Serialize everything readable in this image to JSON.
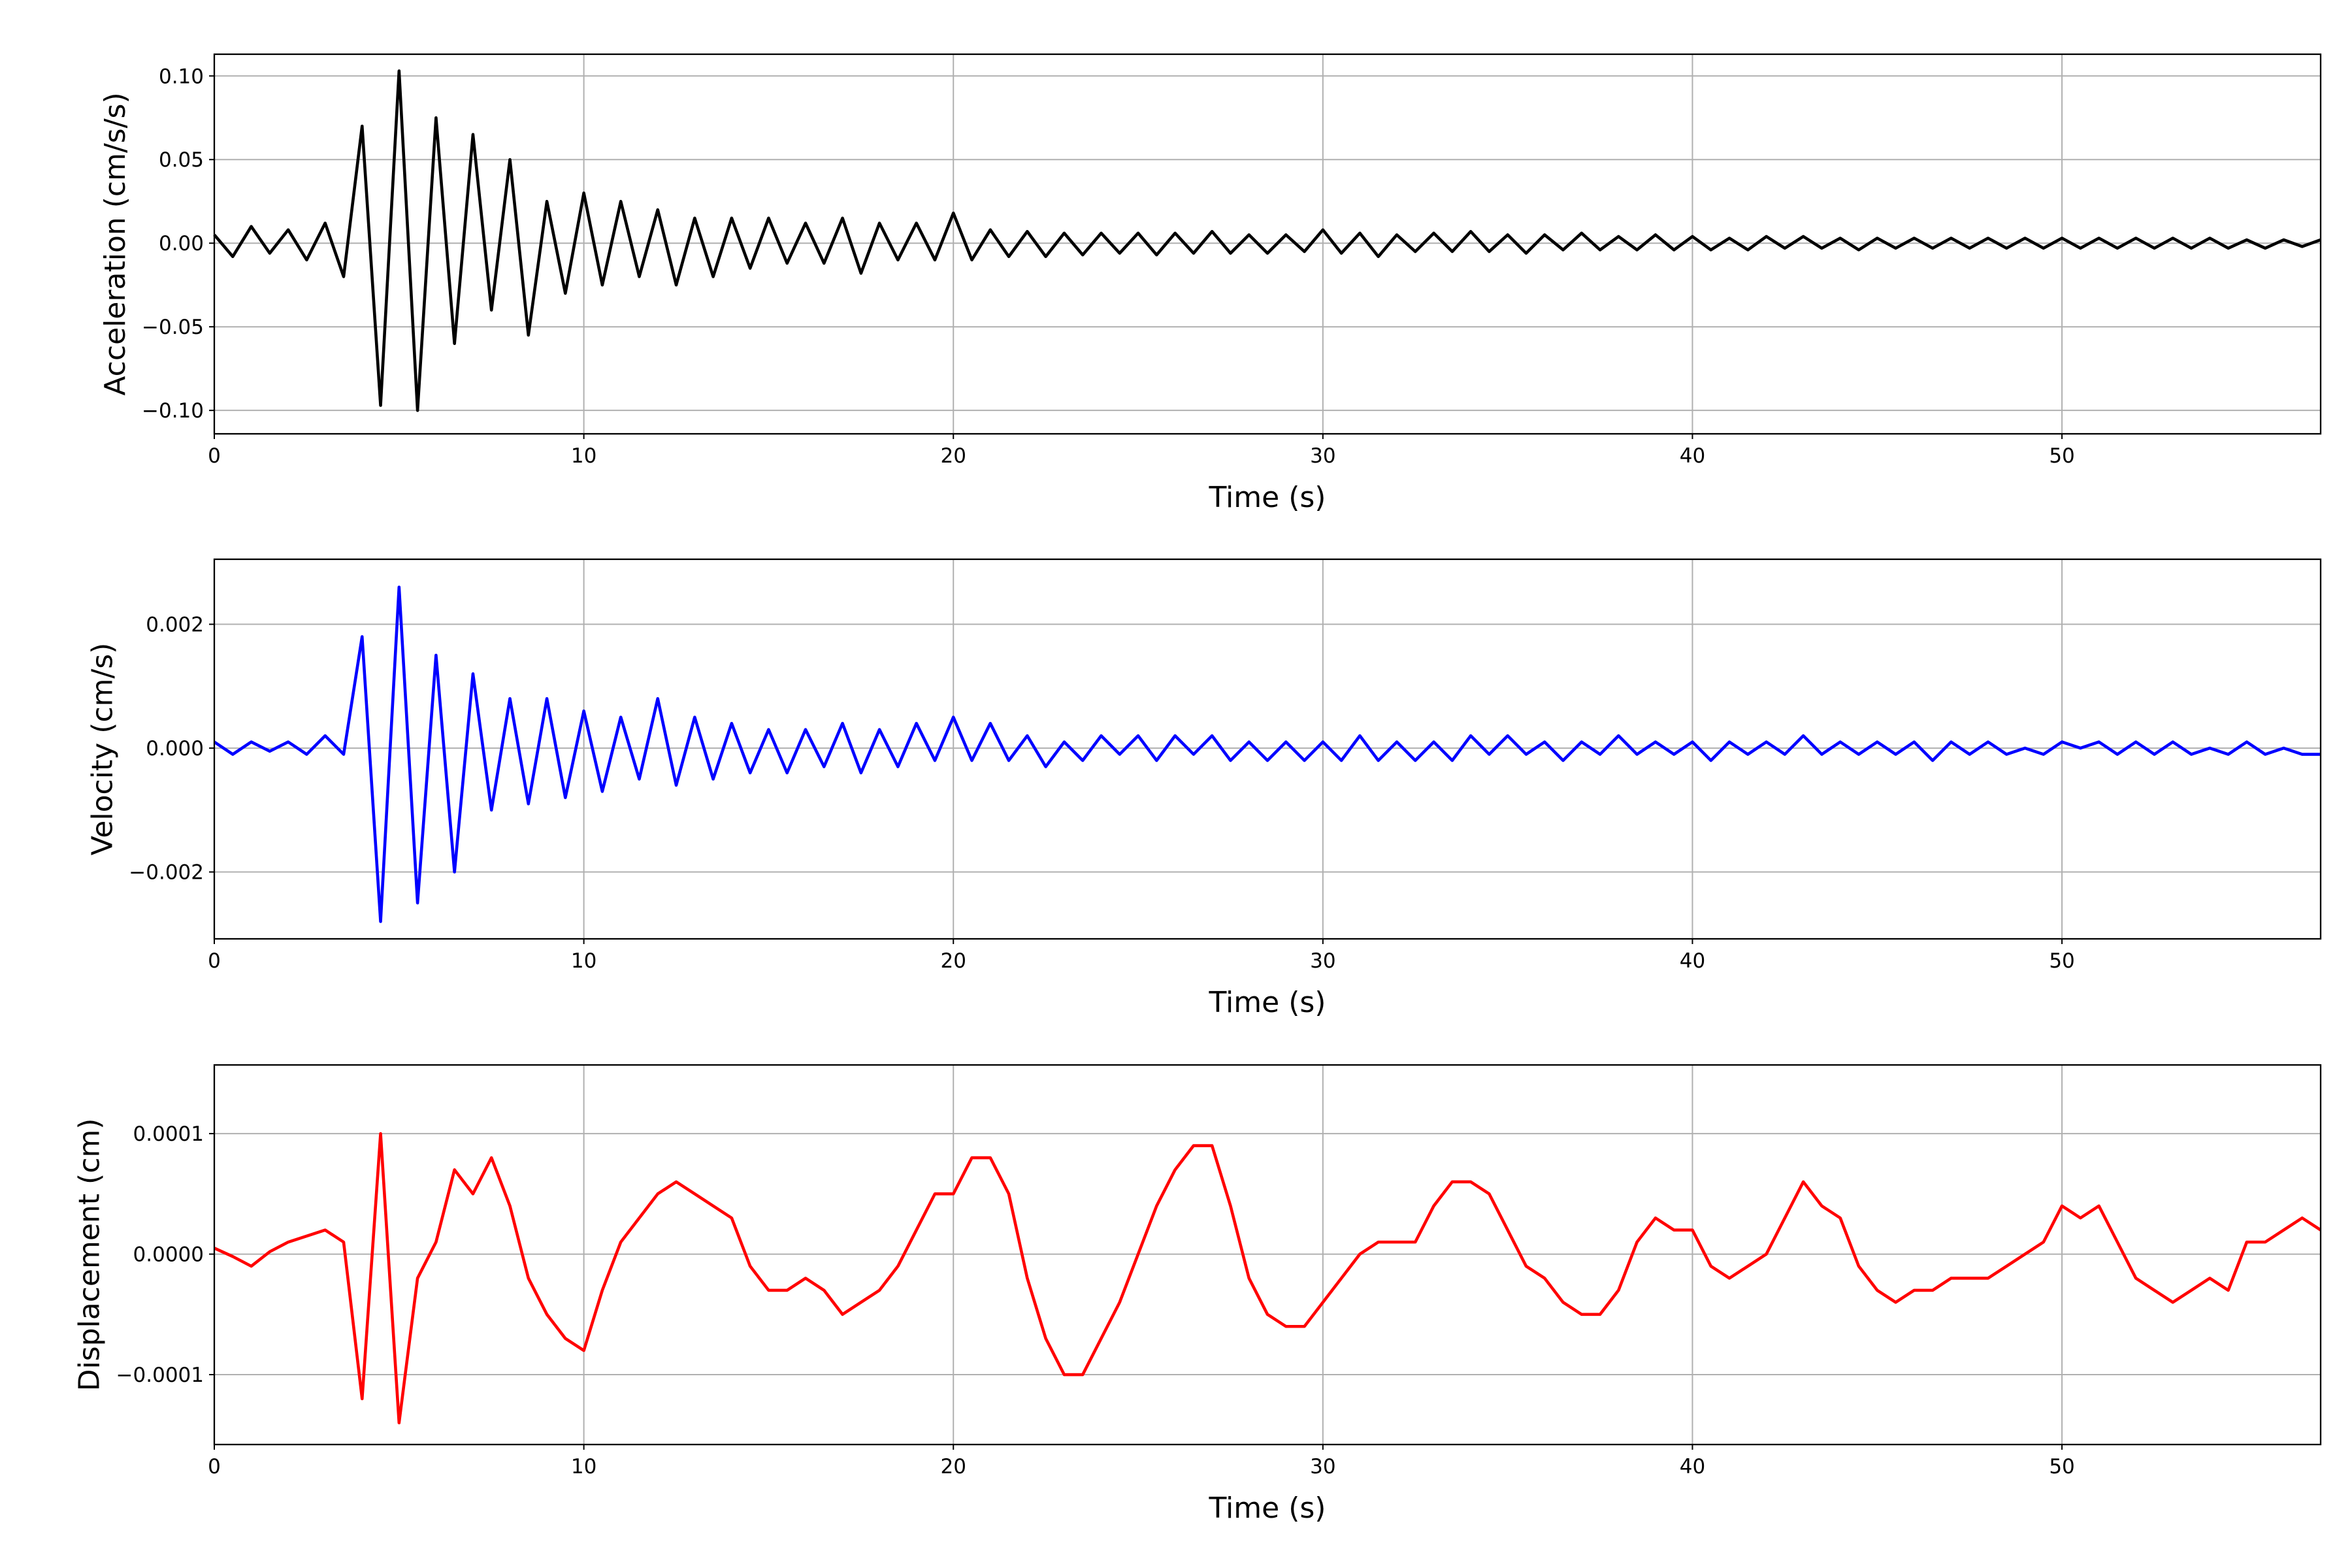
{
  "chart_data": [
    {
      "type": "line",
      "x_label": "Time (s)",
      "y_label": "Acceleration (cm/s/s)",
      "color": "#000000",
      "grid": true,
      "xlim": [
        0,
        57
      ],
      "xticks": [
        0,
        10,
        20,
        30,
        40,
        50
      ],
      "ylim": [
        -0.114,
        0.113
      ],
      "yticks": [
        {
          "value": -0.1,
          "label": "−0.10"
        },
        {
          "value": -0.05,
          "label": "−0.05"
        },
        {
          "value": 0,
          "label": "0.00"
        },
        {
          "value": 0.05,
          "label": "0.05"
        },
        {
          "value": 0.1,
          "label": "0.10"
        }
      ],
      "x": [
        0,
        0.5,
        1,
        1.5,
        2,
        2.5,
        3,
        3.5,
        4,
        4.5,
        5,
        5.5,
        6,
        6.5,
        7,
        7.5,
        8,
        8.5,
        9,
        9.5,
        10,
        10.5,
        11,
        11.5,
        12,
        12.5,
        13,
        13.5,
        14,
        14.5,
        15,
        15.5,
        16,
        16.5,
        17,
        17.5,
        18,
        18.5,
        19,
        19.5,
        20,
        20.5,
        21,
        21.5,
        22,
        22.5,
        23,
        23.5,
        24,
        24.5,
        25,
        25.5,
        26,
        26.5,
        27,
        27.5,
        28,
        28.5,
        29,
        29.5,
        30,
        30.5,
        31,
        31.5,
        32,
        32.5,
        33,
        33.5,
        34,
        34.5,
        35,
        35.5,
        36,
        36.5,
        37,
        37.5,
        38,
        38.5,
        39,
        39.5,
        40,
        40.5,
        41,
        41.5,
        42,
        42.5,
        43,
        43.5,
        44,
        44.5,
        45,
        45.5,
        46,
        46.5,
        47,
        47.5,
        48,
        48.5,
        49,
        49.5,
        50,
        50.5,
        51,
        51.5,
        52,
        52.5,
        53,
        53.5,
        54,
        54.5,
        55,
        55.5,
        56,
        56.5,
        57
      ],
      "values": [
        0.005,
        -0.008,
        0.01,
        -0.006,
        0.008,
        -0.01,
        0.012,
        -0.02,
        0.07,
        -0.097,
        0.103,
        -0.1,
        0.075,
        -0.06,
        0.065,
        -0.04,
        0.05,
        -0.055,
        0.025,
        -0.03,
        0.03,
        -0.025,
        0.025,
        -0.02,
        0.02,
        -0.025,
        0.015,
        -0.02,
        0.015,
        -0.015,
        0.015,
        -0.012,
        0.012,
        -0.012,
        0.015,
        -0.018,
        0.012,
        -0.01,
        0.012,
        -0.01,
        0.018,
        -0.01,
        0.008,
        -0.008,
        0.007,
        -0.008,
        0.006,
        -0.007,
        0.006,
        -0.006,
        0.006,
        -0.007,
        0.006,
        -0.006,
        0.007,
        -0.006,
        0.005,
        -0.006,
        0.005,
        -0.005,
        0.008,
        -0.006,
        0.006,
        -0.008,
        0.005,
        -0.005,
        0.006,
        -0.005,
        0.007,
        -0.005,
        0.005,
        -0.006,
        0.005,
        -0.004,
        0.006,
        -0.004,
        0.004,
        -0.004,
        0.005,
        -0.004,
        0.004,
        -0.004,
        0.003,
        -0.004,
        0.004,
        -0.003,
        0.004,
        -0.003,
        0.003,
        -0.004,
        0.003,
        -0.003,
        0.003,
        -0.003,
        0.003,
        -0.003,
        0.003,
        -0.003,
        0.003,
        -0.003,
        0.003,
        -0.003,
        0.003,
        -0.003,
        0.003,
        -0.003,
        0.003,
        -0.003,
        0.003,
        -0.003,
        0.002,
        -0.003,
        0.002,
        -0.002,
        0.002
      ]
    },
    {
      "type": "line",
      "x_label": "Time (s)",
      "y_label": "Velocity (cm/s)",
      "color": "#0000ff",
      "grid": true,
      "xlim": [
        0,
        57
      ],
      "xticks": [
        0,
        10,
        20,
        30,
        40,
        50
      ],
      "ylim": [
        -0.00308,
        0.00305
      ],
      "yticks": [
        {
          "value": -0.002,
          "label": "−0.002"
        },
        {
          "value": 0,
          "label": "0.000"
        },
        0.002
      ],
      "x": [
        0,
        0.5,
        1,
        1.5,
        2,
        2.5,
        3,
        3.5,
        4,
        4.5,
        5,
        5.5,
        6,
        6.5,
        7,
        7.5,
        8,
        8.5,
        9,
        9.5,
        10,
        10.5,
        11,
        11.5,
        12,
        12.5,
        13,
        13.5,
        14,
        14.5,
        15,
        15.5,
        16,
        16.5,
        17,
        17.5,
        18,
        18.5,
        19,
        19.5,
        20,
        20.5,
        21,
        21.5,
        22,
        22.5,
        23,
        23.5,
        24,
        24.5,
        25,
        25.5,
        26,
        26.5,
        27,
        27.5,
        28,
        28.5,
        29,
        29.5,
        30,
        30.5,
        31,
        31.5,
        32,
        32.5,
        33,
        33.5,
        34,
        34.5,
        35,
        35.5,
        36,
        36.5,
        37,
        37.5,
        38,
        38.5,
        39,
        39.5,
        40,
        40.5,
        41,
        41.5,
        42,
        42.5,
        43,
        43.5,
        44,
        44.5,
        45,
        45.5,
        46,
        46.5,
        47,
        47.5,
        48,
        48.5,
        49,
        49.5,
        50,
        50.5,
        51,
        51.5,
        52,
        52.5,
        53,
        53.5,
        54,
        54.5,
        55,
        55.5,
        56,
        56.5,
        57
      ],
      "values": [
        0.0001,
        -0.0001,
        0.0001,
        -5e-05,
        0.0001,
        -0.0001,
        0.0002,
        -0.0001,
        0.0018,
        -0.0028,
        0.0026,
        -0.0025,
        0.0015,
        -0.002,
        0.0012,
        -0.001,
        0.0008,
        -0.0009,
        0.0008,
        -0.0008,
        0.0006,
        -0.0007,
        0.0005,
        -0.0005,
        0.0008,
        -0.0006,
        0.0005,
        -0.0005,
        0.0004,
        -0.0004,
        0.0003,
        -0.0004,
        0.0003,
        -0.0003,
        0.0004,
        -0.0004,
        0.0003,
        -0.0003,
        0.0004,
        -0.0002,
        0.0005,
        -0.0002,
        0.0004,
        -0.0002,
        0.0002,
        -0.0003,
        0.0001,
        -0.0002,
        0.0002,
        -0.0001,
        0.0002,
        -0.0002,
        0.0002,
        -0.0001,
        0.0002,
        -0.0002,
        0.0001,
        -0.0002,
        0.0001,
        -0.0002,
        0.0001,
        -0.0002,
        0.0002,
        -0.0002,
        0.0001,
        -0.0002,
        0.0001,
        -0.0002,
        0.0002,
        -0.0001,
        0.0002,
        -0.0001,
        0.0001,
        -0.0002,
        0.0001,
        -0.0001,
        0.0002,
        -0.0001,
        0.0001,
        -0.0001,
        0.0001,
        -0.0002,
        0.0001,
        -0.0001,
        0.0001,
        -0.0001,
        0.0002,
        -0.0001,
        0.0001,
        -0.0001,
        0.0001,
        -0.0001,
        0.0001,
        -0.0002,
        0.0001,
        -0.0001,
        0.0001,
        -0.0001,
        0,
        -0.0001,
        0.0001,
        0,
        0.0001,
        -0.0001,
        0.0001,
        -0.0001,
        0.0001,
        -0.0001,
        0,
        -0.0001,
        0.0001,
        -0.0001,
        0,
        -0.0001,
        -0.0001
      ]
    },
    {
      "type": "line",
      "x_label": "Time (s)",
      "y_label": "Displacement (cm)",
      "color": "#ff0000",
      "grid": true,
      "xlim": [
        0,
        57
      ],
      "xticks": [
        0,
        10,
        20,
        30,
        40,
        50
      ],
      "ylim": [
        -0.000158,
        0.000157
      ],
      "yticks": [
        {
          "value": -0.0001,
          "label": "−0.0001"
        },
        {
          "value": 0,
          "label": "0.0000"
        },
        0.0001
      ],
      "x": [
        0,
        0.5,
        1,
        1.5,
        2,
        2.5,
        3,
        3.5,
        4,
        4.5,
        5,
        5.5,
        6,
        6.5,
        7,
        7.5,
        8,
        8.5,
        9,
        9.5,
        10,
        10.5,
        11,
        11.5,
        12,
        12.5,
        13,
        13.5,
        14,
        14.5,
        15,
        15.5,
        16,
        16.5,
        17,
        17.5,
        18,
        18.5,
        19,
        19.5,
        20,
        20.5,
        21,
        21.5,
        22,
        22.5,
        23,
        23.5,
        24,
        24.5,
        25,
        25.5,
        26,
        26.5,
        27,
        27.5,
        28,
        28.5,
        29,
        29.5,
        30,
        30.5,
        31,
        31.5,
        32,
        32.5,
        33,
        33.5,
        34,
        34.5,
        35,
        35.5,
        36,
        36.5,
        37,
        37.5,
        38,
        38.5,
        39,
        39.5,
        40,
        40.5,
        41,
        41.5,
        42,
        42.5,
        43,
        43.5,
        44,
        44.5,
        45,
        45.5,
        46,
        46.5,
        47,
        47.5,
        48,
        48.5,
        49,
        49.5,
        50,
        50.5,
        51,
        51.5,
        52,
        52.5,
        53,
        53.5,
        54,
        54.5,
        55,
        55.5,
        56,
        56.5,
        57
      ],
      "values": [
        5e-06,
        -2e-06,
        -1e-05,
        2e-06,
        1e-05,
        1.5e-05,
        2e-05,
        1e-05,
        -0.00012,
        0.0001,
        -0.00014,
        -2e-05,
        1e-05,
        7e-05,
        5e-05,
        8e-05,
        4e-05,
        -2e-05,
        -5e-05,
        -7e-05,
        -8e-05,
        -3e-05,
        1e-05,
        3e-05,
        5e-05,
        6e-05,
        5e-05,
        4e-05,
        3e-05,
        -1e-05,
        -3e-05,
        -3e-05,
        -2e-05,
        -3e-05,
        -5e-05,
        -4e-05,
        -3e-05,
        -1e-05,
        2e-05,
        5e-05,
        5e-05,
        8e-05,
        8e-05,
        5e-05,
        -2e-05,
        -7e-05,
        -0.0001,
        -0.0001,
        -7e-05,
        -4e-05,
        0,
        4e-05,
        7e-05,
        9e-05,
        9e-05,
        4e-05,
        -2e-05,
        -5e-05,
        -6e-05,
        -6e-05,
        -4e-05,
        -2e-05,
        0,
        1e-05,
        1e-05,
        1e-05,
        4e-05,
        6e-05,
        6e-05,
        5e-05,
        2e-05,
        -1e-05,
        -2e-05,
        -4e-05,
        -5e-05,
        -5e-05,
        -3e-05,
        1e-05,
        3e-05,
        2e-05,
        2e-05,
        -1e-05,
        -2e-05,
        -1e-05,
        0,
        3e-05,
        6e-05,
        4e-05,
        3e-05,
        -1e-05,
        -3e-05,
        -4e-05,
        -3e-05,
        -3e-05,
        -2e-05,
        -2e-05,
        -2e-05,
        -1e-05,
        0,
        1e-05,
        4e-05,
        3e-05,
        4e-05,
        1e-05,
        -2e-05,
        -3e-05,
        -4e-05,
        -3e-05,
        -2e-05,
        -3e-05,
        1e-05,
        1e-05,
        2e-05,
        3e-05,
        2e-05
      ]
    }
  ]
}
